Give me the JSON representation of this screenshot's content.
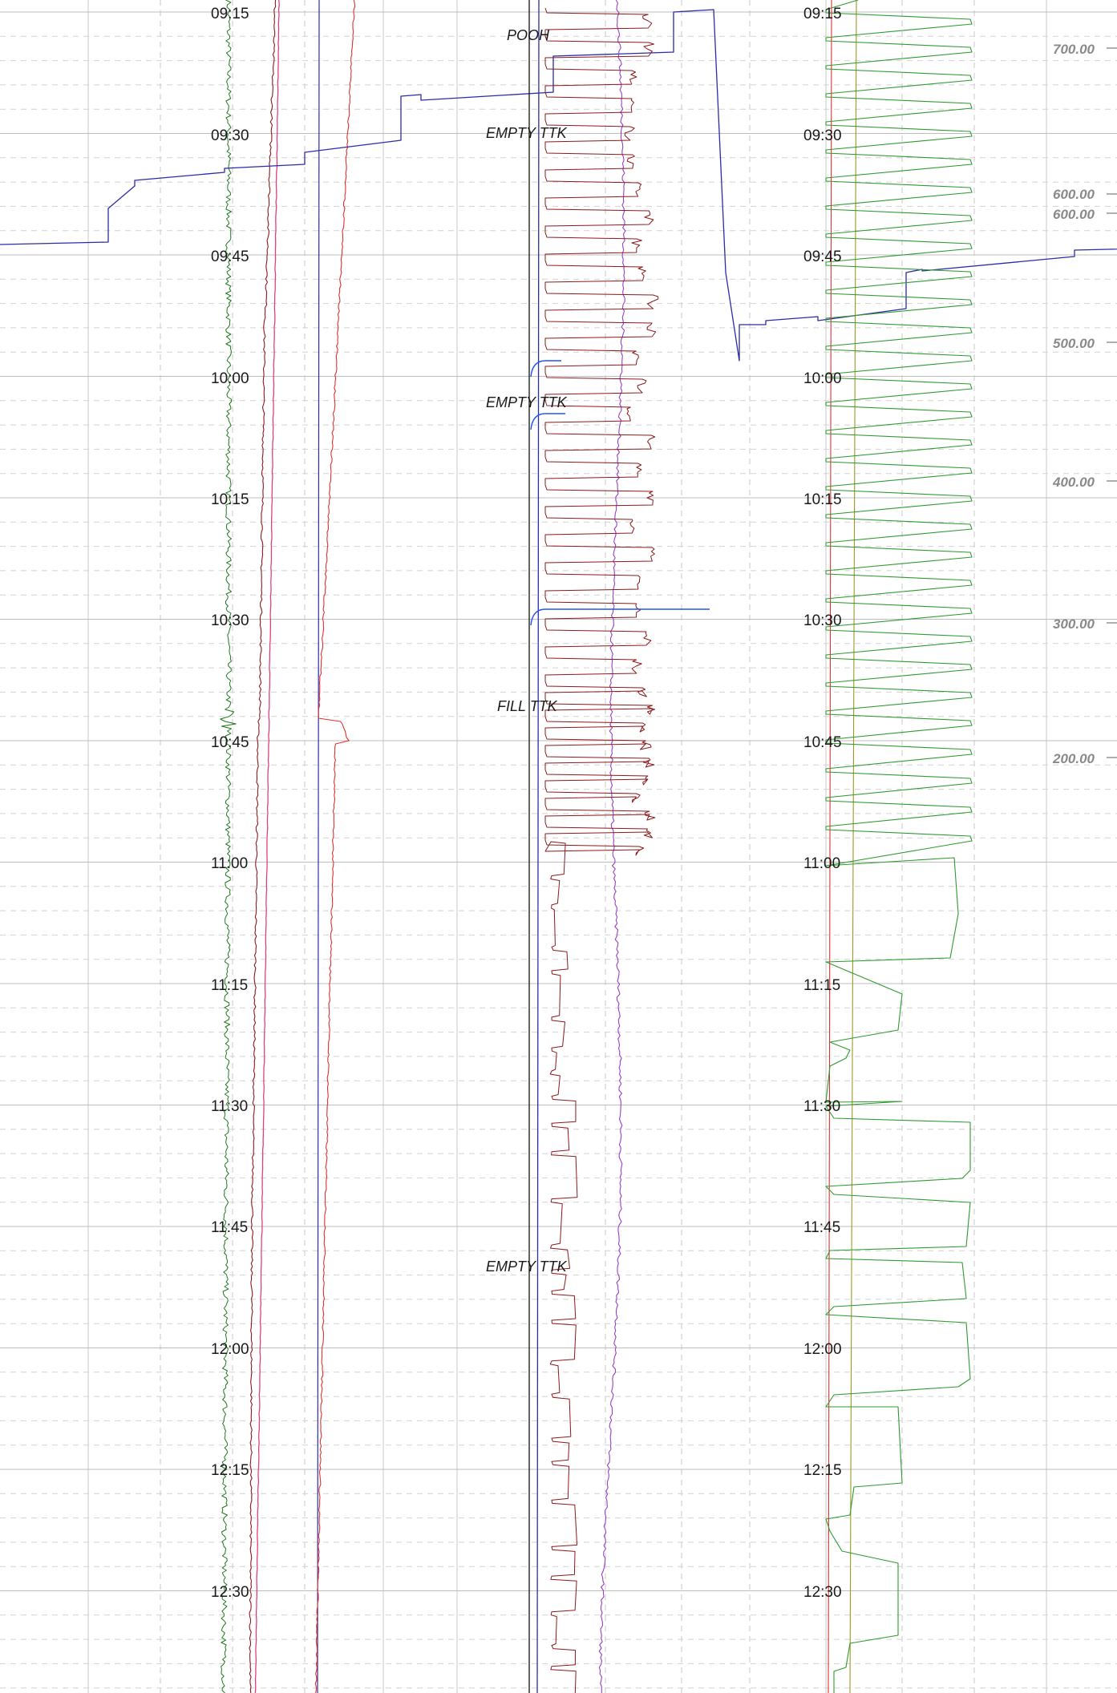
{
  "chart_data": {
    "type": "line",
    "title": "",
    "time_labels": [
      "09:15",
      "09:30",
      "09:45",
      "10:00",
      "10:15",
      "10:30",
      "10:45",
      "11:00",
      "11:15",
      "11:30",
      "11:45",
      "12:00",
      "12:15",
      "12:30"
    ],
    "annotations": [
      {
        "text": "POOH",
        "time": "09:17"
      },
      {
        "text": "EMPTY TTK",
        "time": "09:30"
      },
      {
        "text": "EMPTY TTK",
        "time": "10:03"
      },
      {
        "text": "FILL TTK",
        "time": "10:40"
      },
      {
        "text": "EMPTY TTK",
        "time": "11:50"
      }
    ],
    "depth_labels": [
      "700.00",
      "600.00",
      "600.00",
      "500.00",
      "400.00",
      "300.00",
      "200.00"
    ],
    "colors": {
      "blue": "#2b2ba8",
      "green": "#1d7a1d",
      "brown": "#8b1a1a",
      "pink": "#e0407a",
      "red": "#e03030",
      "purple": "#9b3fc4",
      "bright_blue": "#2255ee",
      "green_track": "#2e9a2e",
      "olive": "#9a9a20",
      "grid": "#c8c8c8"
    },
    "grid": true
  }
}
